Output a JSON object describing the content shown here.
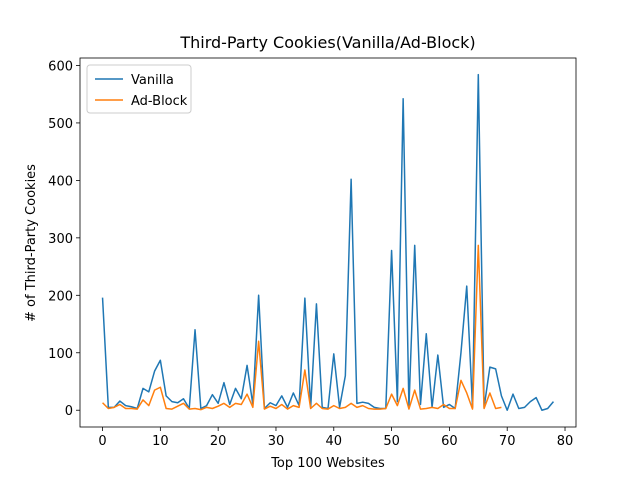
{
  "chart_data": {
    "type": "line",
    "title": "Third-Party Cookies(Vanilla/Ad-Block)",
    "xlabel": "Top 100 Websites",
    "ylabel": "# of Third-Party Cookies",
    "x": [
      0,
      1,
      2,
      3,
      4,
      5,
      6,
      7,
      8,
      9,
      10,
      11,
      12,
      13,
      14,
      15,
      16,
      17,
      18,
      19,
      20,
      21,
      22,
      23,
      24,
      25,
      26,
      27,
      28,
      29,
      30,
      31,
      32,
      33,
      34,
      35,
      36,
      37,
      38,
      39,
      40,
      41,
      42,
      43,
      44,
      45,
      46,
      47,
      48,
      49,
      50,
      51,
      52,
      53,
      54,
      55,
      56,
      57,
      58,
      59,
      60,
      61,
      62,
      63,
      64,
      65,
      66,
      67,
      68,
      69,
      70,
      71,
      72,
      73,
      74,
      75,
      76,
      77,
      78
    ],
    "series": [
      {
        "name": "Vanilla",
        "color": "#1f77b4",
        "values": [
          196,
          5,
          5,
          16,
          8,
          6,
          3,
          38,
          32,
          68,
          87,
          25,
          15,
          13,
          20,
          3,
          140,
          3,
          8,
          27,
          12,
          48,
          10,
          38,
          20,
          78,
          10,
          200,
          3,
          13,
          8,
          25,
          5,
          30,
          8,
          195,
          5,
          185,
          5,
          3,
          98,
          5,
          60,
          402,
          12,
          14,
          12,
          5,
          3,
          3,
          278,
          15,
          542,
          5,
          287,
          10,
          133,
          5,
          96,
          5,
          10,
          3,
          100,
          216,
          5,
          584,
          5,
          75,
          72,
          25,
          0,
          28,
          3,
          5,
          15,
          22,
          0,
          3,
          15
        ]
      },
      {
        "name": "Ad-Block",
        "color": "#ff7f0e",
        "values": [
          13,
          3,
          5,
          10,
          3,
          3,
          2,
          18,
          8,
          35,
          40,
          3,
          2,
          7,
          12,
          2,
          3,
          1,
          5,
          3,
          7,
          12,
          5,
          12,
          10,
          28,
          5,
          120,
          2,
          7,
          3,
          10,
          2,
          8,
          5,
          70,
          3,
          12,
          3,
          2,
          8,
          3,
          5,
          12,
          5,
          8,
          3,
          2,
          2,
          3,
          28,
          8,
          38,
          2,
          35,
          2,
          3,
          5,
          3,
          10,
          3,
          3,
          52,
          30,
          2,
          287,
          3,
          30,
          3,
          5,
          null,
          null,
          null,
          null,
          null,
          null,
          null,
          null,
          null
        ]
      }
    ],
    "xlim": [
      -3.9,
      81.9
    ],
    "ylim": [
      -29.2,
      613
    ],
    "xticks": [
      0,
      10,
      20,
      30,
      40,
      50,
      60,
      70,
      80
    ],
    "yticks": [
      0,
      100,
      200,
      300,
      400,
      500,
      600
    ],
    "legend": "upper left"
  }
}
